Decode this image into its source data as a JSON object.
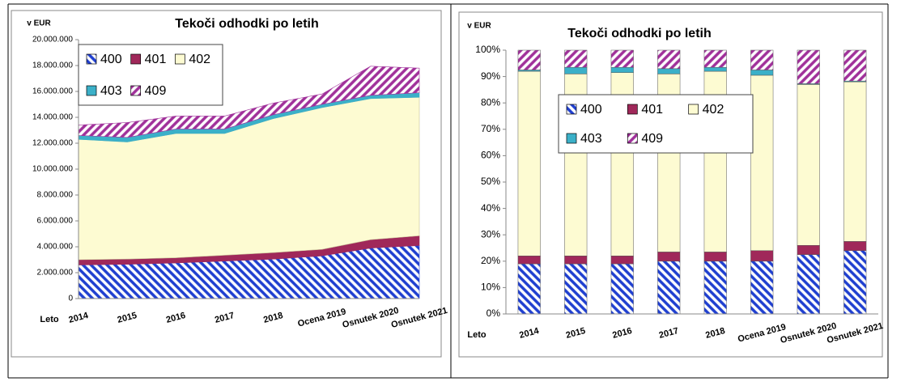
{
  "chart_data": [
    {
      "type": "area",
      "title": "Tekoči odhodki po letih",
      "unit_label": "v EUR",
      "x_label": "Leto",
      "categories": [
        "2014",
        "2015",
        "2016",
        "2017",
        "2018",
        "Ocena 2019",
        "Osnutek 2020",
        "Osnutek 2021"
      ],
      "series": [
        {
          "name": "400",
          "color": "#1f3fd0",
          "hatch": "backslash",
          "values": [
            2600000,
            2650000,
            2750000,
            2900000,
            3050000,
            3300000,
            3900000,
            4100000
          ]
        },
        {
          "name": "401",
          "color": "#a0285a",
          "values": [
            400000,
            400000,
            400000,
            450000,
            500000,
            500000,
            650000,
            750000
          ]
        },
        {
          "name": "402",
          "color": "#fdfbd2",
          "values": [
            9300000,
            9050000,
            9600000,
            9400000,
            10350000,
            10950000,
            10900000,
            10700000
          ]
        },
        {
          "name": "403",
          "color": "#3bb0c8",
          "values": [
            300000,
            350000,
            350000,
            350000,
            300000,
            250000,
            250000,
            350000
          ]
        },
        {
          "name": "409",
          "color": "#a0309a",
          "hatch": "slash",
          "values": [
            800000,
            1150000,
            1000000,
            1000000,
            900000,
            800000,
            2250000,
            1900000
          ]
        }
      ],
      "ylim": [
        0,
        20000000
      ],
      "yticks": [
        0,
        {
          "value": 2000000,
          "label": "2.000.000"
        },
        {
          "value": 4000000,
          "label": "4.000.000"
        },
        {
          "value": 6000000,
          "label": "6.000.000"
        },
        {
          "value": 8000000,
          "label": "8.000.000"
        },
        {
          "value": 10000000,
          "label": "10.000.000"
        },
        {
          "value": 12000000,
          "label": "12.000.000"
        },
        {
          "value": 14000000,
          "label": "14.000.000"
        },
        {
          "value": 16000000,
          "label": "16.000.000"
        },
        {
          "value": 18000000,
          "label": "18.000.000"
        },
        {
          "value": 20000000,
          "label": "20.000.000"
        }
      ]
    },
    {
      "type": "bar",
      "title": "Tekoči odhodki po letih",
      "unit_label": "v EUR",
      "x_label": "Leto",
      "categories": [
        "2014",
        "2015",
        "2016",
        "2017",
        "2018",
        "Ocena 2019",
        "Osnutek 2020",
        "Osnutek 2021"
      ],
      "series": [
        {
          "name": "400",
          "color": "#1f3fd0",
          "hatch": "backslash",
          "values": [
            19,
            19,
            19,
            20,
            20,
            20,
            22.5,
            24
          ]
        },
        {
          "name": "401",
          "color": "#a0285a",
          "values": [
            3,
            3,
            3,
            3.5,
            3.5,
            4,
            3.5,
            3.5
          ]
        },
        {
          "name": "402",
          "color": "#fdfbd2",
          "values": [
            70,
            69,
            69.5,
            67.5,
            68.5,
            66.5,
            61,
            60.5
          ]
        },
        {
          "name": "403",
          "color": "#3bb0c8",
          "values": [
            0.5,
            2.5,
            2,
            2,
            1.5,
            2,
            0.3,
            0.3
          ]
        },
        {
          "name": "409",
          "color": "#a0309a",
          "hatch": "slash",
          "values": [
            7.5,
            6.5,
            6.5,
            7,
            6.5,
            7.5,
            12.7,
            11.7
          ]
        }
      ],
      "ylim": [
        0,
        100
      ],
      "yticks": [
        {
          "value": 0,
          "label": "0%"
        },
        {
          "value": 10,
          "label": "10%"
        },
        {
          "value": 20,
          "label": "20%"
        },
        {
          "value": 30,
          "label": "30%"
        },
        {
          "value": 40,
          "label": "40%"
        },
        {
          "value": 50,
          "label": "50%"
        },
        {
          "value": 60,
          "label": "60%"
        },
        {
          "value": 70,
          "label": "70%"
        },
        {
          "value": 80,
          "label": "80%"
        },
        {
          "value": 90,
          "label": "90%"
        },
        {
          "value": 100,
          "label": "100%"
        }
      ]
    }
  ]
}
